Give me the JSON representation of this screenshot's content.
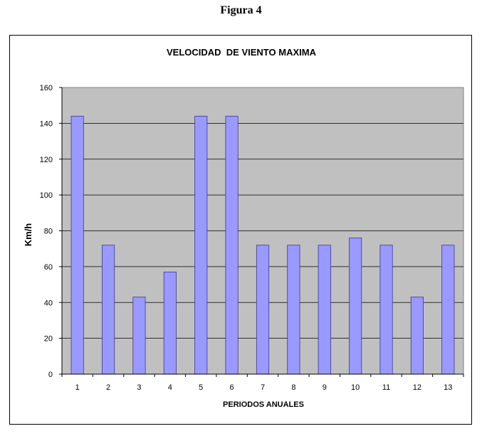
{
  "figure": {
    "caption": "Figura 4"
  },
  "chart_data": {
    "type": "bar",
    "title": "VELOCIDAD  DE VIENTO MAXIMA",
    "xlabel": "PERIODOS ANUALES",
    "ylabel": "Km/h",
    "categories": [
      "1",
      "2",
      "3",
      "4",
      "5",
      "6",
      "7",
      "8",
      "9",
      "10",
      "11",
      "12",
      "13"
    ],
    "values": [
      144,
      72,
      43,
      57,
      144,
      144,
      72,
      72,
      72,
      76,
      72,
      43,
      72
    ],
    "ylim": [
      0,
      160
    ],
    "yticks": [
      "0",
      "20",
      "40",
      "60",
      "80",
      "100",
      "120",
      "140",
      "160"
    ],
    "grid": true,
    "legend": "none",
    "colors": {
      "bar_fill": "#9999ff",
      "bar_stroke": "#3a3a8c",
      "plot_bg": "#c0c0c0",
      "grid": "#000000"
    }
  }
}
